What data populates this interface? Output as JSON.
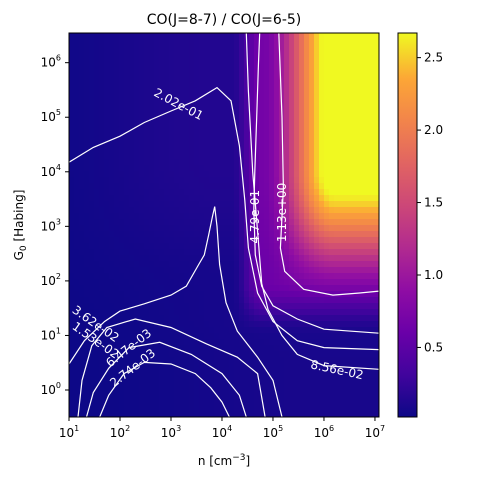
{
  "chart_data": {
    "type": "heatmap",
    "title": "CO(J=8-7) / CO(J=6-5)",
    "xlabel": "n [cm",
    "xlabel_sup": "−3",
    "xlabel_end": "]",
    "ylabel": "G",
    "ylabel_sub": "0",
    "ylabel_end": " [Habing]",
    "x_scale": "log",
    "y_scale": "log",
    "xlim": [
      10,
      12000000
    ],
    "ylim": [
      0.32,
      3500000
    ],
    "grid": false,
    "colormap": "plasma",
    "x_ticks": [
      {
        "value": 10,
        "base": "10",
        "exp": "1"
      },
      {
        "value": 100,
        "base": "10",
        "exp": "2"
      },
      {
        "value": 1000,
        "base": "10",
        "exp": "3"
      },
      {
        "value": 10000,
        "base": "10",
        "exp": "4"
      },
      {
        "value": 100000,
        "base": "10",
        "exp": "5"
      },
      {
        "value": 1000000,
        "base": "10",
        "exp": "6"
      },
      {
        "value": 10000000,
        "base": "10",
        "exp": "7"
      }
    ],
    "y_ticks": [
      {
        "value": 1,
        "base": "10",
        "exp": "0"
      },
      {
        "value": 10,
        "base": "10",
        "exp": "1"
      },
      {
        "value": 100,
        "base": "10",
        "exp": "2"
      },
      {
        "value": 1000,
        "base": "10",
        "exp": "3"
      },
      {
        "value": 10000,
        "base": "10",
        "exp": "4"
      },
      {
        "value": 100000,
        "base": "10",
        "exp": "5"
      },
      {
        "value": 1000000,
        "base": "10",
        "exp": "6"
      }
    ],
    "colorbar": {
      "range": [
        0.02,
        2.67
      ],
      "ticks": [
        {
          "value": 0.5,
          "label": "0.5"
        },
        {
          "value": 1.0,
          "label": "1.0"
        },
        {
          "value": 1.5,
          "label": "1.5"
        },
        {
          "value": 2.0,
          "label": "2.0"
        },
        {
          "value": 2.5,
          "label": "2.5"
        }
      ]
    },
    "contours": [
      {
        "level": 0.00274,
        "label": "2.74e-03",
        "label_at": [
          180,
          2.5
        ],
        "label_angle": 38,
        "points": [
          [
            40,
            0.32
          ],
          [
            60,
            0.8
          ],
          [
            120,
            2.0
          ],
          [
            300,
            3.2
          ],
          [
            1000,
            3.0
          ],
          [
            3000,
            2.0
          ],
          [
            6000,
            1.1
          ],
          [
            10000,
            0.6
          ],
          [
            14000,
            0.32
          ]
        ]
      },
      {
        "level": 0.00647,
        "label": "6.47e-03",
        "label_at": [
          150,
          5.8
        ],
        "label_angle": 38,
        "points": [
          [
            22,
            0.32
          ],
          [
            30,
            0.9
          ],
          [
            60,
            2.5
          ],
          [
            150,
            6.0
          ],
          [
            600,
            7.5
          ],
          [
            2500,
            4.5
          ],
          [
            10000,
            2.0
          ],
          [
            22000,
            0.8
          ],
          [
            30000,
            0.32
          ]
        ]
      },
      {
        "level": 0.0153,
        "label": "1.53e-02",
        "label_at": [
          33,
          8.0
        ],
        "label_angle": -35,
        "points": [
          [
            15,
            0.32
          ],
          [
            18,
            1.5
          ],
          [
            28,
            6.5
          ],
          [
            55,
            14
          ],
          [
            200,
            20
          ],
          [
            1000,
            14
          ],
          [
            5000,
            7
          ],
          [
            20000,
            4
          ],
          [
            50000,
            2
          ],
          [
            70000,
            0.32
          ]
        ]
      },
      {
        "level": 0.0362,
        "label": "3.62e-02",
        "label_at": [
          33,
          16
        ],
        "label_angle": -35,
        "points": [
          [
            10,
            3.0
          ],
          [
            20,
            8.0
          ],
          [
            50,
            18
          ],
          [
            100,
            28
          ],
          [
            300,
            38
          ],
          [
            1000,
            55
          ],
          [
            2000,
            80
          ],
          [
            3500,
            200
          ],
          [
            4500,
            300
          ],
          [
            5500,
            700
          ],
          [
            6500,
            1500
          ],
          [
            7200,
            2300
          ],
          [
            8000,
            1000
          ],
          [
            9000,
            200
          ],
          [
            12000,
            40
          ],
          [
            20000,
            12
          ],
          [
            50000,
            4
          ],
          [
            100000,
            1.5
          ],
          [
            150000,
            0.32
          ]
        ]
      },
      {
        "level": 0.0856,
        "label": "8.56e-02",
        "label_at": [
          1800000,
          2.3
        ],
        "label_angle": -12,
        "points": [
          [
            30000,
            3500000
          ],
          [
            33000,
            300000
          ],
          [
            40000,
            10000
          ],
          [
            50000,
            800
          ],
          [
            60000,
            90
          ],
          [
            80000,
            30
          ],
          [
            150000,
            10
          ],
          [
            300000,
            4.5
          ],
          [
            1000000,
            2.8
          ],
          [
            12000000,
            2.4
          ]
        ]
      },
      {
        "level": 0.202,
        "label": "2.02e-01",
        "label_at": [
          1400,
          170000
        ],
        "label_angle": -28,
        "points": [
          [
            10,
            15000
          ],
          [
            30,
            28000
          ],
          [
            100,
            45000
          ],
          [
            300,
            80000
          ],
          [
            1000,
            130000
          ],
          [
            3000,
            200000
          ],
          [
            8000,
            350000
          ],
          [
            15000,
            200000
          ],
          [
            22000,
            30000
          ],
          [
            28000,
            3000
          ],
          [
            33000,
            400
          ],
          [
            50000,
            60
          ],
          [
            100000,
            18
          ],
          [
            300000,
            8
          ],
          [
            1000000,
            6
          ],
          [
            12000000,
            5.5
          ]
        ]
      },
      {
        "level": 0.479,
        "label": "4.79e-01",
        "label_at": [
          45000,
          1500
        ],
        "label_angle": 90,
        "points": [
          [
            55000,
            3500000
          ],
          [
            52000,
            1000000
          ],
          [
            48000,
            100000
          ],
          [
            44000,
            10000
          ],
          [
            42000,
            2000
          ],
          [
            45000,
            300
          ],
          [
            60000,
            80
          ],
          [
            100000,
            35
          ],
          [
            300000,
            20
          ],
          [
            1000000,
            13
          ],
          [
            12000000,
            11
          ]
        ]
      },
      {
        "level": 1.13,
        "label": "1.13e+00",
        "label_at": [
          155000,
          1800
        ],
        "label_angle": 90,
        "points": [
          [
            130000,
            3500000
          ],
          [
            150000,
            100000
          ],
          [
            160000,
            5000
          ],
          [
            140000,
            400
          ],
          [
            170000,
            150
          ],
          [
            400000,
            70
          ],
          [
            1500000,
            55
          ],
          [
            5000000,
            60
          ],
          [
            12000000,
            65
          ]
        ]
      }
    ]
  }
}
